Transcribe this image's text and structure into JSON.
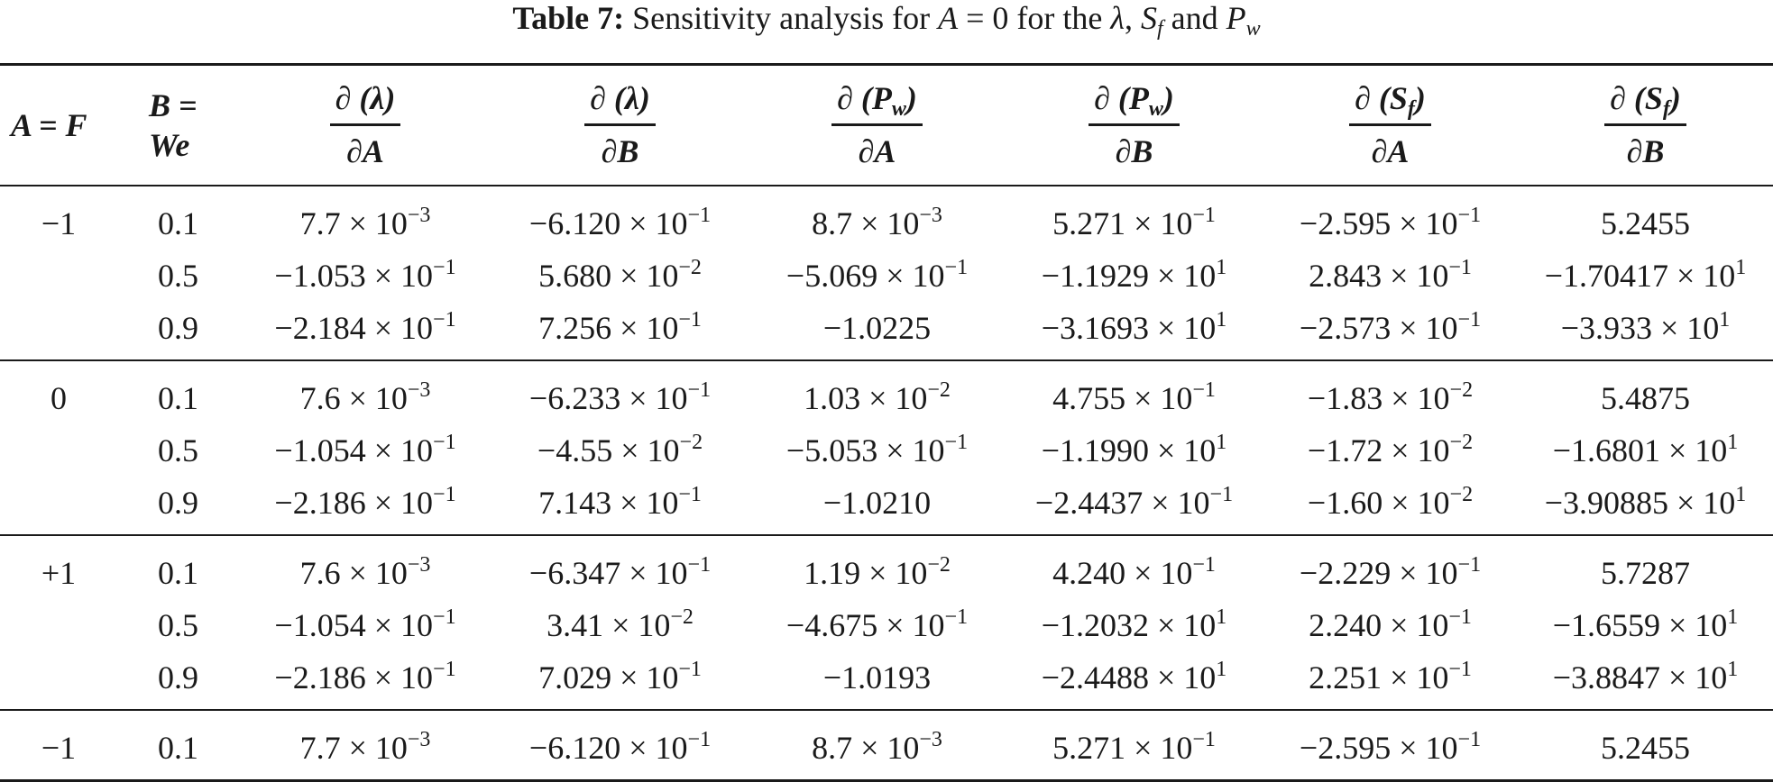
{
  "caption": {
    "label": "Table 7:",
    "text_before": "Sensitivity analysis for",
    "var_a": "A",
    "text_eq": "= 0 for the",
    "lambda": "λ",
    "comma": ",",
    "s_base": "S",
    "s_sub": "f",
    "and": "and",
    "p_base": "P",
    "p_sub": "w"
  },
  "header": {
    "col_a": "A = F",
    "col_b_line1": "B =",
    "col_b_line2": "We",
    "derivatives": [
      {
        "num_prefix": "∂ (",
        "num_base": "λ",
        "num_sub": "",
        "num_suffix": ")",
        "den": "∂A"
      },
      {
        "num_prefix": "∂ (",
        "num_base": "λ",
        "num_sub": "",
        "num_suffix": ")",
        "den": "∂B"
      },
      {
        "num_prefix": "∂ (",
        "num_base": "P",
        "num_sub": "w",
        "num_suffix": ")",
        "den": "∂A"
      },
      {
        "num_prefix": "∂ (",
        "num_base": "P",
        "num_sub": "w",
        "num_suffix": ")",
        "den": "∂B"
      },
      {
        "num_prefix": "∂ (",
        "num_base": "S",
        "num_sub": "f",
        "num_suffix": ")",
        "den": "∂A"
      },
      {
        "num_prefix": "∂ (",
        "num_base": "S",
        "num_sub": "f",
        "num_suffix": ")",
        "den": "∂B"
      }
    ]
  },
  "groups": [
    {
      "a": "−1",
      "rows": [
        {
          "b": "0.1",
          "cells": [
            {
              "m": "7.7 × 10",
              "e": "−3"
            },
            {
              "m": "−6.120 × 10",
              "e": "−1"
            },
            {
              "m": "8.7 × 10",
              "e": "−3"
            },
            {
              "m": "5.271 × 10",
              "e": "−1"
            },
            {
              "m": "−2.595 × 10",
              "e": "−1"
            },
            {
              "m": "5.2455",
              "e": ""
            }
          ]
        },
        {
          "b": "0.5",
          "cells": [
            {
              "m": "−1.053 × 10",
              "e": "−1"
            },
            {
              "m": "5.680 × 10",
              "e": "−2"
            },
            {
              "m": "−5.069 × 10",
              "e": "−1"
            },
            {
              "m": "−1.1929 × 10",
              "e": "1"
            },
            {
              "m": "2.843 × 10",
              "e": "−1"
            },
            {
              "m": "−1.70417 × 10",
              "e": "1"
            }
          ]
        },
        {
          "b": "0.9",
          "cells": [
            {
              "m": "−2.184 × 10",
              "e": "−1"
            },
            {
              "m": "7.256 × 10",
              "e": "−1"
            },
            {
              "m": "−1.0225",
              "e": ""
            },
            {
              "m": "−3.1693 × 10",
              "e": "1"
            },
            {
              "m": "−2.573 × 10",
              "e": "−1"
            },
            {
              "m": "−3.933 × 10",
              "e": "1"
            }
          ]
        }
      ]
    },
    {
      "a": "0",
      "rows": [
        {
          "b": "0.1",
          "cells": [
            {
              "m": "7.6 × 10",
              "e": "−3"
            },
            {
              "m": "−6.233 × 10",
              "e": "−1"
            },
            {
              "m": "1.03 × 10",
              "e": "−2"
            },
            {
              "m": "4.755 × 10",
              "e": "−1"
            },
            {
              "m": "−1.83 × 10",
              "e": "−2"
            },
            {
              "m": "5.4875",
              "e": ""
            }
          ]
        },
        {
          "b": "0.5",
          "cells": [
            {
              "m": "−1.054 × 10",
              "e": "−1"
            },
            {
              "m": "−4.55 × 10",
              "e": "−2"
            },
            {
              "m": "−5.053 × 10",
              "e": "−1"
            },
            {
              "m": "−1.1990 × 10",
              "e": "1"
            },
            {
              "m": "−1.72 × 10",
              "e": "−2"
            },
            {
              "m": "−1.6801 × 10",
              "e": "1"
            }
          ]
        },
        {
          "b": "0.9",
          "cells": [
            {
              "m": "−2.186 × 10",
              "e": "−1"
            },
            {
              "m": "7.143 × 10",
              "e": "−1"
            },
            {
              "m": "−1.0210",
              "e": ""
            },
            {
              "m": "−2.4437 × 10",
              "e": "−1"
            },
            {
              "m": "−1.60 × 10",
              "e": "−2"
            },
            {
              "m": "−3.90885 × 10",
              "e": "1"
            }
          ]
        }
      ]
    },
    {
      "a": "+1",
      "rows": [
        {
          "b": "0.1",
          "cells": [
            {
              "m": "7.6 × 10",
              "e": "−3"
            },
            {
              "m": "−6.347 × 10",
              "e": "−1"
            },
            {
              "m": "1.19 × 10",
              "e": "−2"
            },
            {
              "m": "4.240 × 10",
              "e": "−1"
            },
            {
              "m": "−2.229 × 10",
              "e": "−1"
            },
            {
              "m": "5.7287",
              "e": ""
            }
          ]
        },
        {
          "b": "0.5",
          "cells": [
            {
              "m": "−1.054 × 10",
              "e": "−1"
            },
            {
              "m": "3.41 × 10",
              "e": "−2"
            },
            {
              "m": "−4.675 × 10",
              "e": "−1"
            },
            {
              "m": "−1.2032 × 10",
              "e": "1"
            },
            {
              "m": "2.240 × 10",
              "e": "−1"
            },
            {
              "m": "−1.6559 × 10",
              "e": "1"
            }
          ]
        },
        {
          "b": "0.9",
          "cells": [
            {
              "m": "−2.186 × 10",
              "e": "−1"
            },
            {
              "m": "7.029 × 10",
              "e": "−1"
            },
            {
              "m": "−1.0193",
              "e": ""
            },
            {
              "m": "−2.4488 × 10",
              "e": "1"
            },
            {
              "m": "2.251 × 10",
              "e": "−1"
            },
            {
              "m": "−3.8847 × 10",
              "e": "1"
            }
          ]
        }
      ]
    },
    {
      "a": "−1",
      "rows": [
        {
          "b": "0.1",
          "cells": [
            {
              "m": "7.7 × 10",
              "e": "−3"
            },
            {
              "m": "−6.120 × 10",
              "e": "−1"
            },
            {
              "m": "8.7 × 10",
              "e": "−3"
            },
            {
              "m": "5.271 × 10",
              "e": "−1"
            },
            {
              "m": "−2.595 × 10",
              "e": "−1"
            },
            {
              "m": "5.2455",
              "e": ""
            }
          ]
        }
      ]
    }
  ]
}
